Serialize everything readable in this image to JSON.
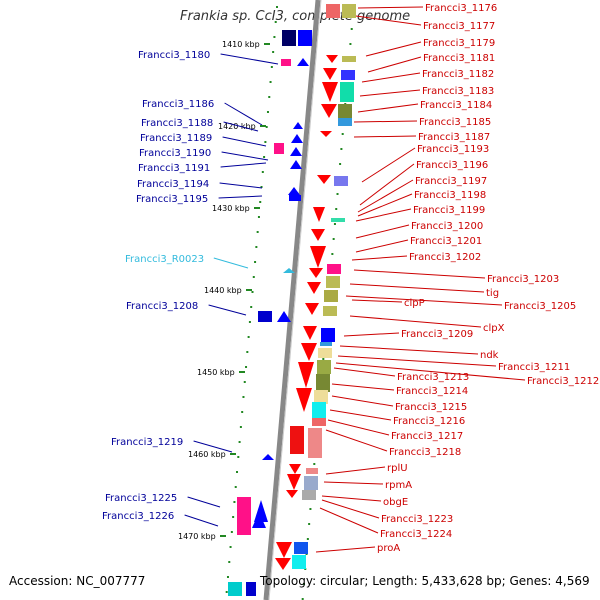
{
  "title": "Frankia sp. CcI3, complete genome",
  "footer": {
    "accession": "Accession: NC_007777",
    "stats": "Topology: circular; Length: 5,433,628 bp; Genes: 4,569"
  },
  "scale_labels": [
    "1410 kbp",
    "1420 kbp",
    "1430 kbp",
    "1440 kbp",
    "1450 kbp",
    "1460 kbp",
    "1470 kbp"
  ],
  "colors": {
    "forward_gene": "#0000ff",
    "reverse_gene": "#ff0000",
    "rna": "#33bbdd",
    "backbone": "#888888",
    "tick": "#228822",
    "label_left": "#000099",
    "label_right": "#cc0000",
    "label_rna": "#33bbdd"
  },
  "left_labels": [
    "Francci3_1180",
    "Francci3_1186",
    "Francci3_1188",
    "Francci3_1189",
    "Francci3_1190",
    "Francci3_1191",
    "Francci3_1194",
    "Francci3_1195",
    "Francci3_R0023",
    "Francci3_1208",
    "Francci3_1219",
    "Francci3_1225",
    "Francci3_1226"
  ],
  "right_labels": [
    "Francci3_1176",
    "Francci3_1177",
    "Francci3_1179",
    "Francci3_1181",
    "Francci3_1182",
    "Francci3_1183",
    "Francci3_1184",
    "Francci3_1185",
    "Francci3_1187",
    "Francci3_1193",
    "Francci3_1196",
    "Francci3_1197",
    "Francci3_1198",
    "Francci3_1199",
    "Francci3_1200",
    "Francci3_1201",
    "Francci3_1202",
    "Francci3_1203",
    "tig",
    "Francci3_1205",
    "clpP",
    "clpX",
    "Francci3_1209",
    "ndk",
    "Francci3_1211",
    "Francci3_1212",
    "Francci3_1213",
    "Francci3_1214",
    "Francci3_1215",
    "Francci3_1216",
    "Francci3_1217",
    "Francci3_1218",
    "rplU",
    "rpmA",
    "obgE",
    "Francci3_1223",
    "Francci3_1224",
    "proA"
  ]
}
